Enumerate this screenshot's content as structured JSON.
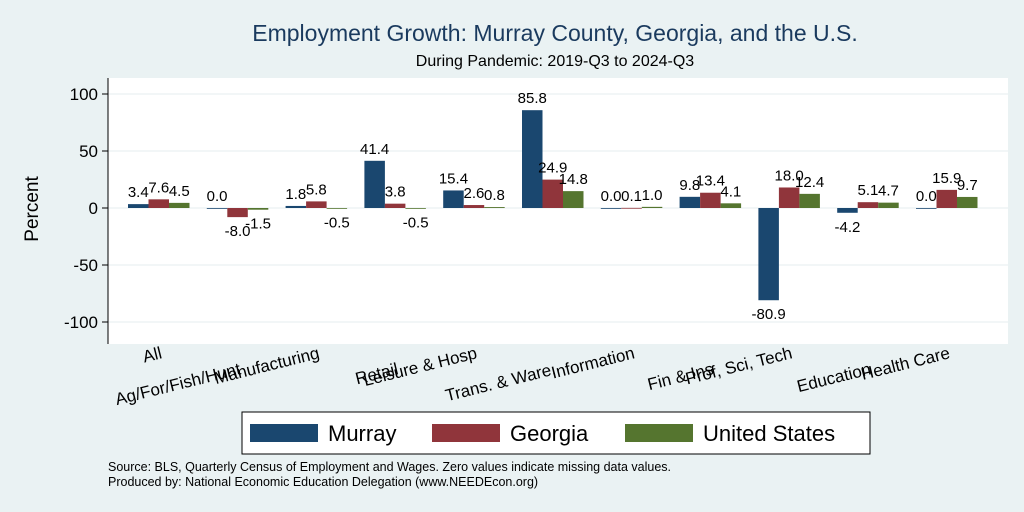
{
  "chart_data": {
    "type": "bar",
    "title": "Employment Growth: Murray County, Georgia, and the U.S.",
    "subtitle": "During Pandemic: 2019-Q3 to 2024-Q3",
    "ylabel": "Percent",
    "ylim": [
      -120,
      115
    ],
    "yticks": [
      100,
      50,
      0,
      -50,
      -100
    ],
    "grid": true,
    "legend_position": "bottom",
    "categories": [
      "All",
      "Ag/For/Fish/Hunt",
      "Manufacturing",
      "Retail",
      "Leisure & Hosp",
      "Trans. & Ware.",
      "Information",
      "Fin & Ins",
      "Prof, Sci, Tech",
      "Education",
      "Health Care"
    ],
    "series": [
      {
        "name": "Murray",
        "color": "#1a476f",
        "values": [
          3.4,
          0.0,
          1.8,
          41.4,
          15.4,
          85.8,
          0.0,
          9.8,
          -80.9,
          -4.2,
          0.0
        ]
      },
      {
        "name": "Georgia",
        "color": "#90353b",
        "values": [
          7.6,
          -8.0,
          5.8,
          3.8,
          2.6,
          24.9,
          0.1,
          13.4,
          18.0,
          5.1,
          15.9
        ]
      },
      {
        "name": "United States",
        "color": "#55752f",
        "values": [
          4.5,
          -1.5,
          -0.5,
          -0.5,
          0.8,
          14.8,
          1.0,
          4.1,
          12.4,
          4.7,
          9.7
        ]
      }
    ],
    "notes": [
      "Source: BLS, Quarterly Census of Employment and Wages. Zero values indicate missing data values.",
      "Produced by: National Economic Education Delegation (www.NEEDEcon.org)"
    ]
  }
}
